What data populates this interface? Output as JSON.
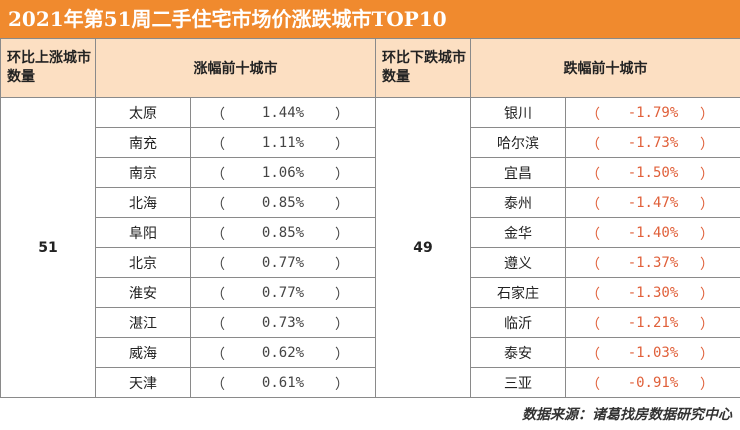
{
  "title": "2021年第51周二手住宅市场价涨跌城市TOP10",
  "header": {
    "up_count_label": "环比上涨城市数量",
    "up_title": "涨幅前十城市",
    "down_count_label": "环比下跌城市数量",
    "down_title": "跌幅前十城市"
  },
  "up_count": "51",
  "down_count": "49",
  "rows": [
    {
      "up_city": "太原",
      "up_value": "1.44%",
      "down_city": "银川",
      "down_value": "-1.79%"
    },
    {
      "up_city": "南充",
      "up_value": "1.11%",
      "down_city": "哈尔滨",
      "down_value": "-1.73%"
    },
    {
      "up_city": "南京",
      "up_value": "1.06%",
      "down_city": "宜昌",
      "down_value": "-1.50%"
    },
    {
      "up_city": "北海",
      "up_value": "0.85%",
      "down_city": "泰州",
      "down_value": "-1.47%"
    },
    {
      "up_city": "阜阳",
      "up_value": "0.85%",
      "down_city": "金华",
      "down_value": "-1.40%"
    },
    {
      "up_city": "北京",
      "up_value": "0.77%",
      "down_city": "遵义",
      "down_value": "-1.37%"
    },
    {
      "up_city": "淮安",
      "up_value": "0.77%",
      "down_city": "石家庄",
      "down_value": "-1.30%"
    },
    {
      "up_city": "湛江",
      "up_value": "0.73%",
      "down_city": "临沂",
      "down_value": "-1.21%"
    },
    {
      "up_city": "威海",
      "up_value": "0.62%",
      "down_city": "泰安",
      "down_value": "-1.03%"
    },
    {
      "up_city": "天津",
      "up_value": "0.61%",
      "down_city": "三亚",
      "down_value": "-0.91%"
    }
  ],
  "paren_open": "（",
  "paren_close": "）",
  "source": "数据来源：诸葛找房数据研究中心",
  "colors": {
    "title_bg": "#f08a2e",
    "header_bg": "#fcdfc2",
    "down_value": "#e0603a"
  }
}
